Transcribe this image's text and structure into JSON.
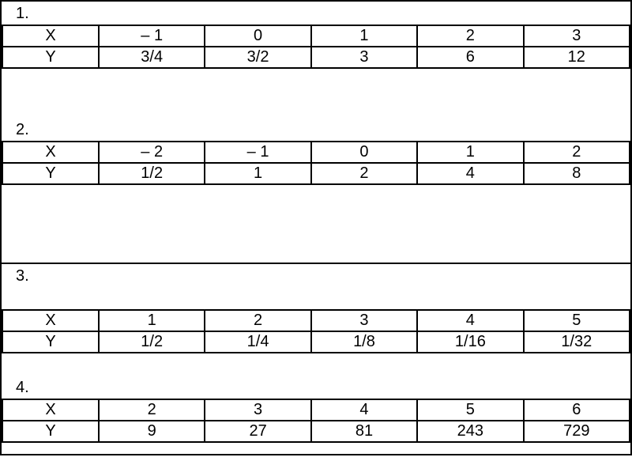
{
  "problems": [
    {
      "label": "1.",
      "row_x_header": "X",
      "row_y_header": "Y",
      "x": [
        "– 1",
        "0",
        "1",
        "2",
        "3"
      ],
      "y": [
        "3/4",
        "3/2",
        "3",
        "6",
        "12"
      ]
    },
    {
      "label": "2.",
      "row_x_header": "X",
      "row_y_header": "Y",
      "x": [
        "– 2",
        "– 1",
        "0",
        "1",
        "2"
      ],
      "y": [
        "1/2",
        "1",
        "2",
        "4",
        "8"
      ]
    },
    {
      "label": "3.",
      "row_x_header": "X",
      "row_y_header": "Y",
      "x": [
        "1",
        "2",
        "3",
        "4",
        "5"
      ],
      "y": [
        "1/2",
        "1/4",
        "1/8",
        "1/16",
        "1/32"
      ]
    },
    {
      "label": "4.",
      "row_x_header": "X",
      "row_y_header": "Y",
      "x": [
        "2",
        "3",
        "4",
        "5",
        "6"
      ],
      "y": [
        "9",
        "27",
        "81",
        "243",
        "729"
      ]
    }
  ]
}
